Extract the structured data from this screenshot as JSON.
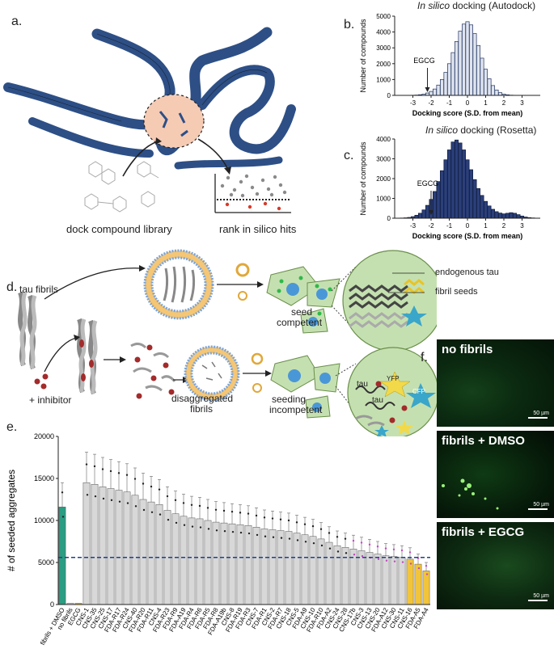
{
  "panels": {
    "a": {
      "label": "a.",
      "caption_left": "dock compound library",
      "caption_right": "rank in silico hits"
    },
    "b": {
      "label": "b.",
      "title_italic": "In silico",
      "title_rest": " docking (Autodock)",
      "marker": "EGCG"
    },
    "c": {
      "label": "c.",
      "title_italic": "In silico",
      "title_rest": " docking (Rosetta)",
      "marker": "EGCG"
    },
    "d": {
      "label": "d.",
      "tau_fibrils": "tau fibrils",
      "inhibitor": "+ inhibitor",
      "disaggregated_1": "disaggregated",
      "disaggregated_2": "fibrils",
      "seed_competent_1": "seed",
      "seed_competent_2": "competent",
      "seeding_incompetent_1": "seeding",
      "seeding_incompetent_2": "incompetent",
      "endogenous_tau": "endogenous tau",
      "fibril_seeds": "fibril seeds",
      "tau_a": "tau",
      "tau_b": "tau",
      "yfp": "YFP",
      "cfp": "CFP"
    },
    "e": {
      "label": "e."
    },
    "f": {
      "label": "f.",
      "images": [
        {
          "label": "no fibrils",
          "scale": "50 µm"
        },
        {
          "label": "fibrils + DMSO",
          "scale": "50 µm"
        },
        {
          "label": "fibrils + EGCG",
          "scale": "50 µm"
        }
      ]
    }
  },
  "chart_data": [
    {
      "type": "bar",
      "panel": "b",
      "title": "In silico docking (Autodock)",
      "xlabel": "Docking score (S.D. from mean)",
      "ylabel": "Number of compounds",
      "xlim": [
        -4,
        4
      ],
      "ylim": [
        0,
        5000
      ],
      "x_ticks": [
        "-3",
        "-2",
        "-1",
        "0",
        "1",
        "2",
        "3"
      ],
      "y_ticks": [
        "0",
        "1000",
        "2000",
        "3000",
        "4000",
        "5000"
      ],
      "bar_color": "#dfe4ee",
      "bar_edge": "#1d2f5e",
      "bin_centers": [
        -3.2,
        -3.0,
        -2.8,
        -2.6,
        -2.4,
        -2.2,
        -2.0,
        -1.8,
        -1.6,
        -1.4,
        -1.2,
        -1.0,
        -0.8,
        -0.6,
        -0.4,
        -0.2,
        0.0,
        0.2,
        0.4,
        0.6,
        0.8,
        1.0,
        1.2,
        1.4,
        1.6,
        1.8,
        2.0,
        2.2,
        2.4,
        2.6,
        2.8,
        3.0
      ],
      "values": [
        5,
        10,
        20,
        40,
        80,
        150,
        250,
        400,
        650,
        1000,
        1450,
        2000,
        2700,
        3400,
        4050,
        4500,
        4650,
        4450,
        3900,
        3150,
        2350,
        1650,
        1050,
        620,
        340,
        170,
        80,
        35,
        15,
        8,
        4,
        2
      ],
      "annotation": {
        "text": "EGCG",
        "x": -2.2
      }
    },
    {
      "type": "bar",
      "panel": "c",
      "title": "In silico docking (Rosetta)",
      "xlabel": "Docking score (S.D. from mean)",
      "ylabel": "Number of compounds",
      "xlim": [
        -4,
        4
      ],
      "ylim": [
        0,
        4000
      ],
      "x_ticks": [
        "-3",
        "-2",
        "-1",
        "0",
        "1",
        "2",
        "3"
      ],
      "y_ticks": [
        "0",
        "1000",
        "2000",
        "3000",
        "4000"
      ],
      "bar_color": "#2b3f7a",
      "bar_edge": "#0f1a3a",
      "bin_centers": [
        -3.6,
        -3.4,
        -3.2,
        -3.0,
        -2.8,
        -2.6,
        -2.4,
        -2.2,
        -2.0,
        -1.8,
        -1.6,
        -1.4,
        -1.2,
        -1.0,
        -0.8,
        -0.6,
        -0.4,
        -0.2,
        0.0,
        0.2,
        0.4,
        0.6,
        0.8,
        1.0,
        1.2,
        1.4,
        1.6,
        1.8,
        2.0,
        2.2,
        2.4,
        2.6,
        2.8,
        3.0,
        3.2,
        3.4,
        3.6
      ],
      "values": [
        10,
        20,
        40,
        80,
        150,
        250,
        420,
        650,
        950,
        1350,
        1850,
        2400,
        2950,
        3450,
        3850,
        3950,
        3800,
        3450,
        2950,
        2450,
        1950,
        1500,
        1150,
        850,
        620,
        450,
        330,
        260,
        220,
        250,
        280,
        250,
        180,
        110,
        60,
        30,
        15
      ],
      "annotation": {
        "text": "EGCG",
        "x": -2.0
      }
    },
    {
      "type": "bar",
      "panel": "e",
      "ylabel": "# of seeded aggregates",
      "ylim": [
        0,
        20000
      ],
      "y_ticks": [
        "0",
        "5000",
        "10000",
        "15000",
        "20000"
      ],
      "threshold": 5600,
      "categories": [
        "fibrils + DMSO",
        "no fibrils",
        "EGCG",
        "CNS-1",
        "CNS-35",
        "CNS-25",
        "CNS-17",
        "FDA-R17",
        "FDA-R24",
        "CNS-40",
        "FDA-R20",
        "FDA-R11",
        "CNS-4",
        "FDA-R23",
        "FDA-R9",
        "FDA-A19",
        "FDA-R4",
        "FDA-R6",
        "FDA-R5",
        "FDA-R8",
        "FDA-A19b",
        "CNS-8",
        "FDA-R19",
        "FDA-R3",
        "CNS-7",
        "FDA-R1",
        "CNS-2",
        "FDA-R7",
        "CNS-18",
        "CNS-5",
        "FDA-A9",
        "CNS-10",
        "FDA-R10",
        "FDA-A2",
        "CNS-24",
        "CNS-28",
        "CNS-17b",
        "CNS-3",
        "CNS-13",
        "CNS-20",
        "FDA-A12",
        "CNS-30",
        "CNS-11",
        "CNS-16",
        "FDA-A5",
        "FDA-A4"
      ],
      "values": [
        11600,
        150,
        150,
        14500,
        14300,
        14000,
        13800,
        13600,
        13400,
        13000,
        12500,
        12200,
        11900,
        11200,
        10800,
        10500,
        10300,
        10200,
        10000,
        9800,
        9700,
        9600,
        9500,
        9400,
        9200,
        9000,
        8900,
        8800,
        8700,
        8500,
        8300,
        8100,
        7800,
        7400,
        7000,
        6800,
        6600,
        6400,
        6200,
        6000,
        5800,
        5700,
        5600,
        5400,
        4800,
        4000
      ],
      "colors": {
        "control": "#2a9d82",
        "grey": "#d8d8d8",
        "yellow": "#f2c43a"
      }
    }
  ]
}
